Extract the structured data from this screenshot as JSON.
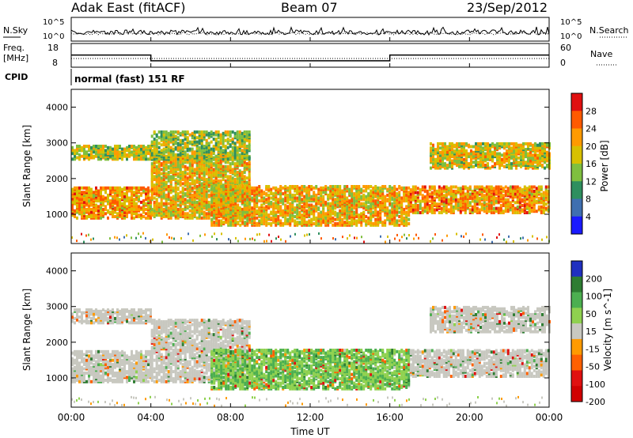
{
  "header": {
    "station": "Adak East (fitACF)",
    "beam": "Beam 07",
    "date": "23/Sep/2012"
  },
  "noise_panel": {
    "left_label": "N.Sky",
    "right_label": "N.Search",
    "left_ticks": [
      "10^5",
      "10^0"
    ],
    "right_ticks": [
      "10^5",
      "10^0"
    ]
  },
  "freq_panel": {
    "left_label_1": "Freq.",
    "left_label_2": "[MHz]",
    "right_label": "Nave",
    "left_ticks": [
      "18",
      "8"
    ],
    "right_ticks": [
      "60",
      "0"
    ],
    "cpid_label": "CPID",
    "cpid_value": "normal (fast) 151 RF",
    "freq_mhz": [
      {
        "t": 0,
        "f": 13.5
      },
      {
        "t": 4,
        "f": 13.5
      },
      {
        "t": 4,
        "f": 10.9
      },
      {
        "t": 16,
        "f": 10.9
      },
      {
        "t": 16,
        "f": 13.5
      },
      {
        "t": 24,
        "f": 13.5
      }
    ],
    "nave": 16
  },
  "chart_data": [
    {
      "type": "heatmap",
      "title": "",
      "xlabel": "",
      "ylabel": "Slant Range [km]",
      "xlim": [
        0,
        24
      ],
      "ylim": [
        180,
        4500
      ],
      "yticks": [
        "1000",
        "2000",
        "3000",
        "4000"
      ],
      "colorbar": {
        "label": "Power [dB]",
        "ticks": [
          "28",
          "24",
          "20",
          "16",
          "12",
          "8",
          "4"
        ],
        "colors": [
          "#e01010",
          "#ff5a00",
          "#ff9a00",
          "#d8c000",
          "#7fbf3f",
          "#2f8f5f",
          "#3f6fb0",
          "#1a1aff"
        ]
      },
      "echo_bands": [
        {
          "t0": 0,
          "t1": 4,
          "r0": 850,
          "r1": 1700,
          "value": 27
        },
        {
          "t0": 0,
          "t1": 4,
          "r0": 2500,
          "r1": 2900,
          "value": 22
        },
        {
          "t0": 4,
          "t1": 9,
          "r0": 850,
          "r1": 2600,
          "value": 24
        },
        {
          "t0": 4,
          "t1": 9,
          "r0": 2500,
          "r1": 3300,
          "value": 20
        },
        {
          "t0": 7,
          "t1": 17,
          "r0": 650,
          "r1": 1750,
          "value": 25
        },
        {
          "t0": 17,
          "t1": 24,
          "r0": 1000,
          "r1": 1750,
          "value": 27
        },
        {
          "t0": 18,
          "t1": 24,
          "r0": 2250,
          "r1": 2950,
          "value": 23
        }
      ]
    },
    {
      "type": "heatmap",
      "title": "",
      "xlabel": "Time UT",
      "ylabel": "Slant Range [km]",
      "xlim": [
        0,
        24
      ],
      "ylim": [
        180,
        4500
      ],
      "xticks": [
        "00:00",
        "04:00",
        "08:00",
        "12:00",
        "16:00",
        "20:00",
        "00:00"
      ],
      "yticks": [
        "1000",
        "2000",
        "3000",
        "4000"
      ],
      "colorbar": {
        "label": "Velocity [m s^-1]",
        "ticks": [
          "200",
          "100",
          "50",
          "15",
          "-15",
          "-50",
          "-100",
          "-200"
        ],
        "colors": [
          "#2030c0",
          "#2e7d32",
          "#4caf50",
          "#8fd14f",
          "#c8c8c0",
          "#ff9a00",
          "#ff6000",
          "#e01010",
          "#d00000"
        ]
      },
      "echo_bands": [
        {
          "t0": 0,
          "t1": 4,
          "r0": 850,
          "r1": 1700,
          "value": 0
        },
        {
          "t0": 0,
          "t1": 4,
          "r0": 2500,
          "r1": 2900,
          "value": 0
        },
        {
          "t0": 4,
          "t1": 9,
          "r0": 850,
          "r1": 2600,
          "value": 0
        },
        {
          "t0": 7,
          "t1": 17,
          "r0": 650,
          "r1": 1750,
          "value": 30
        },
        {
          "t0": 17,
          "t1": 24,
          "r0": 1000,
          "r1": 1750,
          "value": 0
        },
        {
          "t0": 18,
          "t1": 24,
          "r0": 2250,
          "r1": 2950,
          "value": 0
        }
      ]
    }
  ]
}
